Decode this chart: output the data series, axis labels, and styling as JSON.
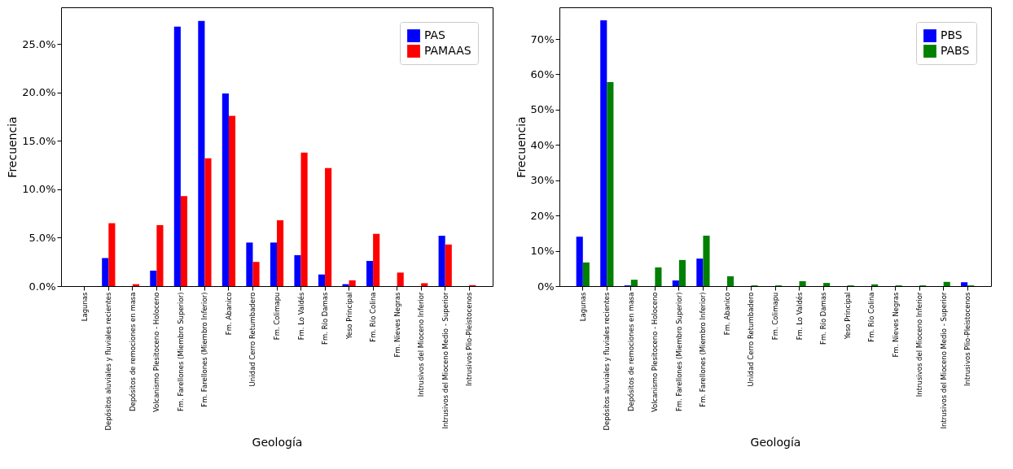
{
  "chart_data": [
    {
      "type": "bar",
      "xlabel": "Geología",
      "ylabel": "Frecuencia",
      "legend": "top right",
      "grid": false,
      "categories": [
        "Lagunas",
        "Depósitos aluviales y fluviales recientes",
        "Depósitos de remociones en masa",
        "Volcanismo Plesitoceno - Holoceno",
        "Fm. Farellones (Miembro Superior)",
        "Fm. Farellones (Miembro Inferior)",
        "Fm. Abanico",
        "Unidad Cerro Retumbadero",
        "Fm. Colimapu",
        "Fm. Lo Valdés",
        "Fm. Río Damas",
        "Yeso Principal",
        "Fm. Río Colina",
        "Fm. Nieves Negras",
        "Intrusivos del Mioceno Inferior",
        "Intrusivos del Mioceno Medio - Superior",
        "Intrusivos Plio-Pleistocenos"
      ],
      "series": [
        {
          "name": "PAS",
          "color": "#0000ff",
          "values": [
            0,
            2.9,
            0,
            1.6,
            26.8,
            27.4,
            19.9,
            4.5,
            4.5,
            3.2,
            1.2,
            0.2,
            2.6,
            0,
            0,
            5.2,
            0
          ]
        },
        {
          "name": "PAMAAS",
          "color": "#ff0000",
          "values": [
            0,
            6.5,
            0.2,
            6.3,
            9.3,
            13.2,
            17.6,
            2.5,
            6.8,
            13.8,
            12.2,
            0.6,
            5.4,
            1.4,
            0.3,
            4.3,
            0.1
          ]
        }
      ],
      "ylim": [
        0,
        28.8
      ],
      "yticks": [
        {
          "value": 0,
          "label": "0.0%"
        },
        {
          "value": 5,
          "label": "5.0%"
        },
        {
          "value": 10,
          "label": "10.0%"
        },
        {
          "value": 15,
          "label": "15.0%"
        },
        {
          "value": 20,
          "label": "20.0%"
        },
        {
          "value": 25,
          "label": "25.0%"
        }
      ]
    },
    {
      "type": "bar",
      "xlabel": "Geología",
      "ylabel": "Frecuencia",
      "legend": "top right",
      "grid": false,
      "categories": [
        "Lagunas",
        "Depósitos aluviales y fluviales recientes",
        "Depósitos de remociones en masa",
        "Volcanismo Plesitoceno - Holoceno",
        "Fm. Farellones (Miembro Superior)",
        "Fm. Farellones (Miembro Inferior)",
        "Fm. Abanico",
        "Unidad Cerro Retumbadero",
        "Fm. Colimapu",
        "Fm. Lo Valdés",
        "Fm. Río Damas",
        "Yeso Principal",
        "Fm. Río Colina",
        "Fm. Nieves Negras",
        "Intrusivos del Mioceno Inferior",
        "Intrusivos del Mioceno Medio - Superior",
        "Intrusivos Plio-Pleistocenos"
      ],
      "series": [
        {
          "name": "PBS",
          "color": "#0000ff",
          "values": [
            14.0,
            75.3,
            0.2,
            0,
            1.6,
            7.8,
            0,
            0,
            0,
            0,
            0,
            0,
            0,
            0,
            0,
            0,
            1.1
          ]
        },
        {
          "name": "PABS",
          "color": "#008000",
          "values": [
            6.7,
            57.8,
            1.8,
            5.3,
            7.4,
            14.3,
            2.8,
            0.2,
            0.2,
            1.4,
            0.9,
            0.2,
            0.5,
            0.2,
            0.2,
            1.2,
            0.2
          ]
        }
      ],
      "ylim": [
        0,
        79
      ],
      "yticks": [
        {
          "value": 0,
          "label": "0%"
        },
        {
          "value": 10,
          "label": "10%"
        },
        {
          "value": 20,
          "label": "20%"
        },
        {
          "value": 30,
          "label": "30%"
        },
        {
          "value": 40,
          "label": "40%"
        },
        {
          "value": 50,
          "label": "50%"
        },
        {
          "value": 60,
          "label": "60%"
        },
        {
          "value": 70,
          "label": "70%"
        }
      ]
    }
  ]
}
